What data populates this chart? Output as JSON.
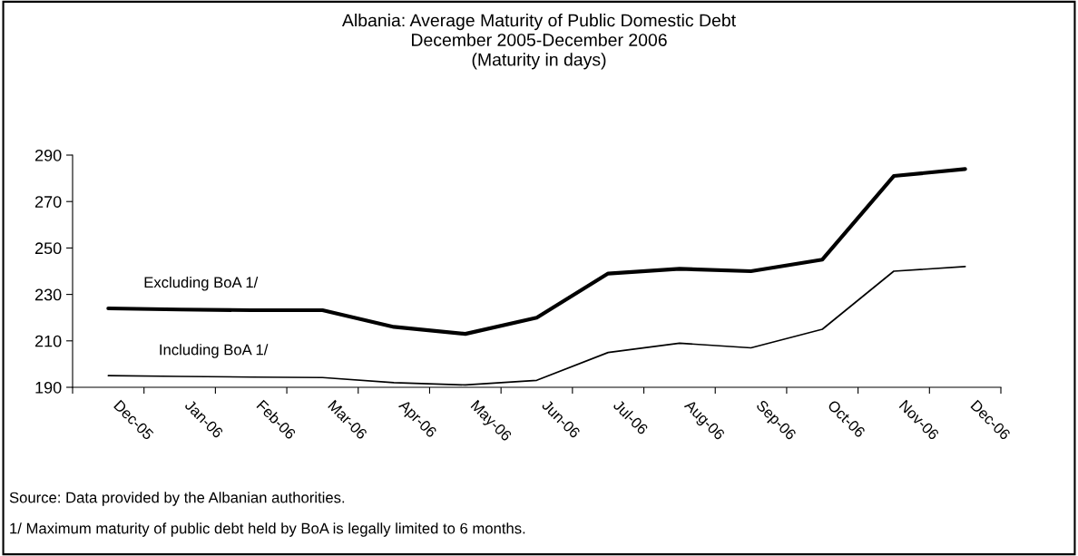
{
  "chart_data": {
    "type": "line",
    "title": "Albania: Average Maturity of Public Domestic Debt\nDecember 2005-December 2006\n(Maturity in days)",
    "categories": [
      "Dec-05",
      "Jan-06",
      "Feb-06",
      "Mar-06",
      "Apr-06",
      "May-06",
      "Jun-06",
      "Jul-06",
      "Aug-06",
      "Sep-06",
      "Oct-06",
      "Nov-06",
      "Dec-06"
    ],
    "series": [
      {
        "name": "Excluding BoA 1/",
        "color": "#000000",
        "values": [
          224,
          223.5,
          223.2,
          223.2,
          216,
          213,
          220,
          239,
          241,
          240,
          245,
          281,
          284
        ]
      },
      {
        "name": "Including BoA 1/",
        "color": "#000000",
        "values": [
          195,
          194.7,
          194.4,
          194.2,
          192,
          191,
          193,
          205,
          209,
          207,
          215,
          240,
          242
        ]
      }
    ],
    "ylim": [
      190,
      290
    ],
    "yticks": [
      190,
      210,
      230,
      250,
      270,
      290
    ],
    "grid": false,
    "legend": false,
    "marker": "none",
    "line_style": "solid",
    "annotations": [
      "Source: Data provided by the Albanian authorities.",
      "1/ Maximum maturity of public debt held by BoA is legally limited to 6 months."
    ]
  }
}
